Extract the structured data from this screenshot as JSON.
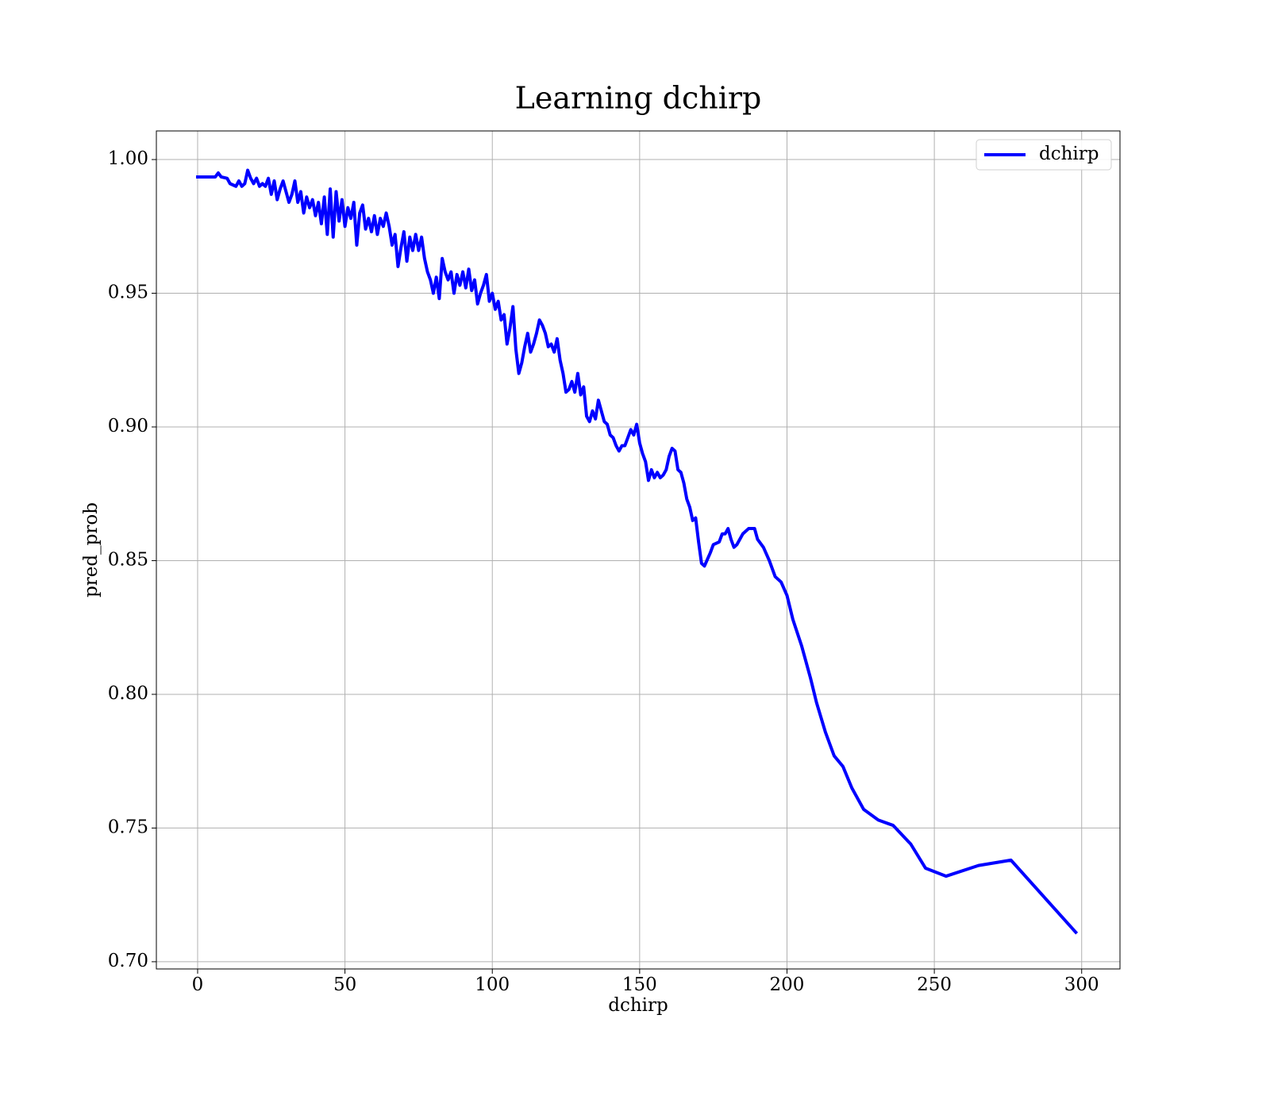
{
  "chart_data": {
    "type": "line",
    "title": "Learning dchirp",
    "xlabel": "dchirp",
    "ylabel": "pred_prob",
    "x": [
      0,
      6,
      7,
      8,
      10,
      11,
      13,
      14,
      15,
      16,
      17,
      18,
      19,
      20,
      21,
      22,
      23,
      24,
      25,
      26,
      27,
      28,
      29,
      30,
      31,
      32,
      33,
      34,
      35,
      36,
      37,
      38,
      39,
      40,
      41,
      42,
      43,
      44,
      45,
      46,
      47,
      48,
      49,
      50,
      51,
      52,
      53,
      54,
      55,
      56,
      57,
      58,
      59,
      60,
      61,
      62,
      63,
      64,
      65,
      66,
      67,
      68,
      69,
      70,
      71,
      72,
      73,
      74,
      75,
      76,
      77,
      78,
      79,
      80,
      81,
      82,
      83,
      84,
      85,
      86,
      87,
      88,
      89,
      90,
      91,
      92,
      93,
      94,
      95,
      96,
      97,
      98,
      99,
      100,
      101,
      102,
      103,
      104,
      105,
      106,
      107,
      108,
      109,
      110,
      111,
      112,
      113,
      114,
      115,
      116,
      117,
      118,
      119,
      120,
      121,
      122,
      123,
      124,
      125,
      126,
      127,
      128,
      129,
      130,
      131,
      132,
      133,
      134,
      135,
      136,
      137,
      138,
      139,
      140,
      141,
      142,
      143,
      144,
      145,
      146,
      147,
      148,
      149,
      150,
      151,
      152,
      153,
      154,
      155,
      156,
      157,
      158,
      159,
      160,
      161,
      162,
      163,
      164,
      165,
      166,
      167,
      168,
      169,
      170,
      171,
      172,
      174,
      175,
      177,
      178,
      179,
      180,
      181,
      182,
      183,
      185,
      187,
      189,
      190,
      192,
      194,
      196,
      198,
      200,
      202,
      205,
      208,
      210,
      213,
      216,
      219,
      222,
      226,
      231,
      236,
      242,
      247,
      254,
      265,
      276,
      298
    ],
    "series": [
      {
        "name": "dchirp",
        "color": "#0000ff",
        "values": [
          0.9935,
          0.9935,
          0.995,
          0.9935,
          0.993,
          0.991,
          0.99,
          0.992,
          0.99,
          0.991,
          0.996,
          0.993,
          0.991,
          0.993,
          0.99,
          0.991,
          0.99,
          0.993,
          0.987,
          0.992,
          0.985,
          0.989,
          0.992,
          0.988,
          0.984,
          0.987,
          0.992,
          0.984,
          0.988,
          0.98,
          0.986,
          0.982,
          0.985,
          0.979,
          0.984,
          0.976,
          0.986,
          0.972,
          0.989,
          0.971,
          0.988,
          0.977,
          0.985,
          0.975,
          0.982,
          0.978,
          0.984,
          0.968,
          0.98,
          0.983,
          0.974,
          0.978,
          0.973,
          0.979,
          0.972,
          0.978,
          0.975,
          0.98,
          0.975,
          0.968,
          0.972,
          0.96,
          0.967,
          0.973,
          0.962,
          0.971,
          0.966,
          0.972,
          0.966,
          0.971,
          0.963,
          0.958,
          0.955,
          0.95,
          0.956,
          0.948,
          0.963,
          0.958,
          0.955,
          0.958,
          0.95,
          0.957,
          0.953,
          0.958,
          0.952,
          0.959,
          0.951,
          0.955,
          0.946,
          0.95,
          0.953,
          0.957,
          0.947,
          0.95,
          0.944,
          0.947,
          0.94,
          0.942,
          0.931,
          0.937,
          0.945,
          0.929,
          0.92,
          0.924,
          0.93,
          0.935,
          0.928,
          0.931,
          0.935,
          0.94,
          0.938,
          0.935,
          0.93,
          0.931,
          0.928,
          0.933,
          0.925,
          0.92,
          0.913,
          0.914,
          0.917,
          0.913,
          0.92,
          0.912,
          0.915,
          0.904,
          0.902,
          0.906,
          0.903,
          0.91,
          0.906,
          0.902,
          0.901,
          0.897,
          0.896,
          0.893,
          0.891,
          0.893,
          0.893,
          0.896,
          0.899,
          0.897,
          0.901,
          0.894,
          0.89,
          0.887,
          0.88,
          0.884,
          0.881,
          0.883,
          0.881,
          0.882,
          0.884,
          0.889,
          0.892,
          0.891,
          0.884,
          0.883,
          0.879,
          0.873,
          0.87,
          0.865,
          0.866,
          0.857,
          0.849,
          0.848,
          0.853,
          0.856,
          0.857,
          0.86,
          0.86,
          0.862,
          0.858,
          0.855,
          0.856,
          0.86,
          0.862,
          0.862,
          0.858,
          0.855,
          0.85,
          0.844,
          0.842,
          0.837,
          0.828,
          0.818,
          0.806,
          0.797,
          0.786,
          0.777,
          0.773,
          0.765,
          0.757,
          0.753,
          0.751,
          0.744,
          0.735,
          0.732,
          0.736,
          0.738,
          0.711
        ]
      }
    ],
    "xlim": [
      -14,
      313
    ],
    "ylim": [
      0.6973,
      1.0107
    ],
    "xticks": [
      0,
      50,
      100,
      150,
      200,
      250,
      300
    ],
    "yticks": [
      {
        "value": 0.7,
        "label": "0.70"
      },
      {
        "value": 0.75,
        "label": "0.75"
      },
      {
        "value": 0.8,
        "label": "0.80"
      },
      {
        "value": 0.85,
        "label": "0.85"
      },
      {
        "value": 0.9,
        "label": "0.90"
      },
      {
        "value": 0.95,
        "label": "0.95"
      },
      {
        "value": 1.0,
        "label": "1.00"
      }
    ],
    "grid": true,
    "legend": "upper right"
  }
}
